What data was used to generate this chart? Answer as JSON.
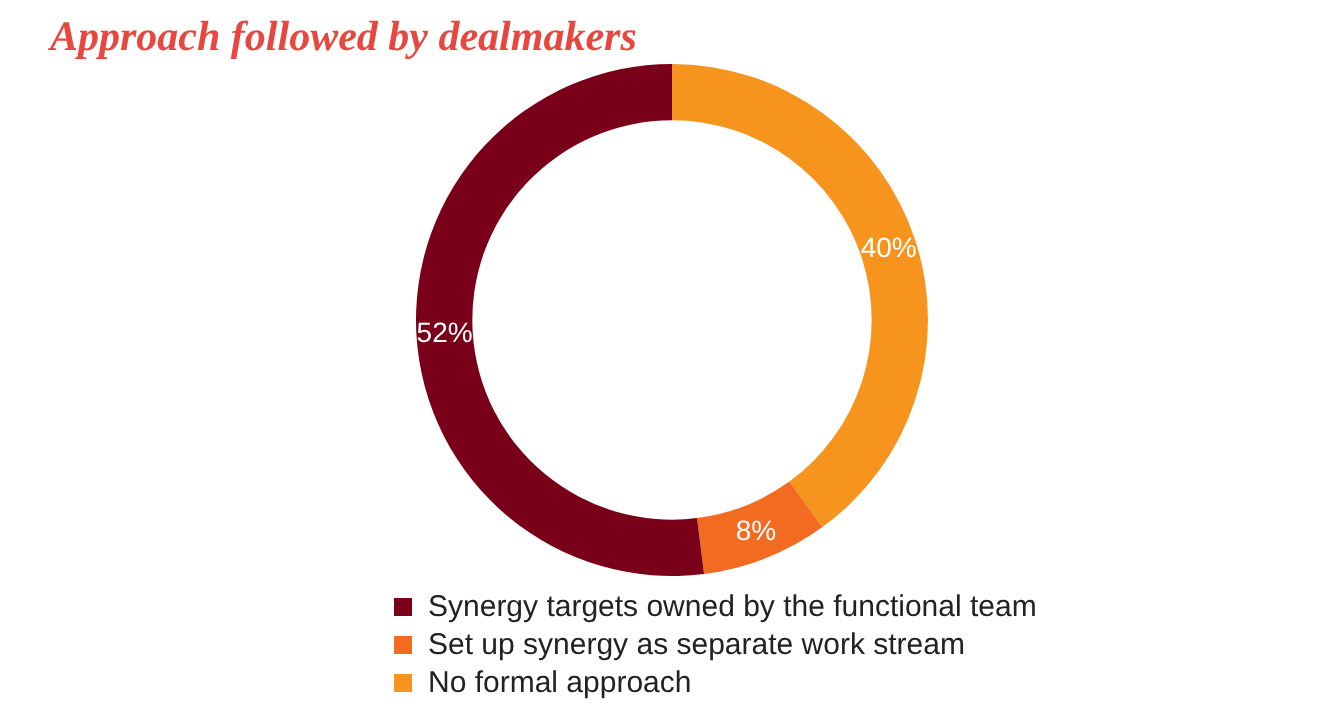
{
  "chart_data": {
    "type": "donut",
    "title": "Approach followed by dealmakers",
    "categories": [
      "No formal approach",
      "Set up synergy as separate work stream",
      "Synergy targets owned by the functional team"
    ],
    "values": [
      40,
      8,
      52
    ],
    "colors": [
      "#f7941d",
      "#f26b21",
      "#7a0019"
    ],
    "value_labels": [
      "40%",
      "8%",
      "52%"
    ],
    "legend": "bottom"
  }
}
